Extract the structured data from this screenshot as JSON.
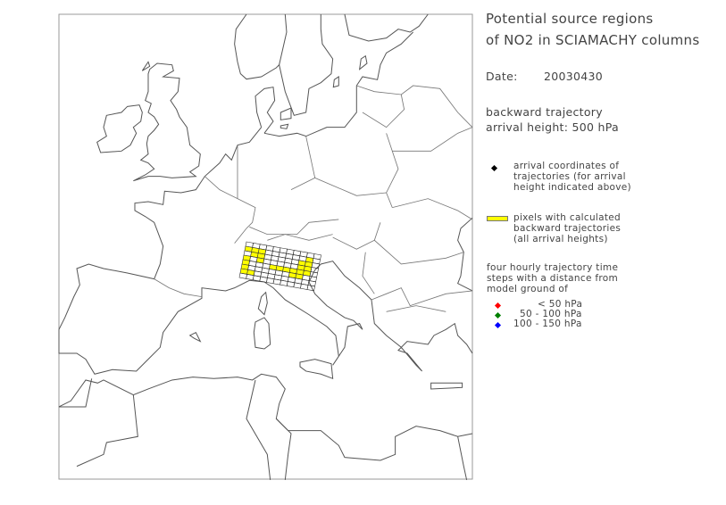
{
  "title": [
    "Potential source regions",
    "of NO2 in SCIAMACHY columns"
  ],
  "date": {
    "label": "Date:",
    "value": "20030430"
  },
  "trajectory": {
    "line1": "backward trajectory",
    "line2": "arrival height: 500 hPa"
  },
  "legend": {
    "arrival": {
      "icon": "diamond-black",
      "color": "#000000",
      "lines": [
        "arrival coordinates of",
        "trajectories (for arrival",
        "height indicated above)"
      ]
    },
    "pixels": {
      "color": "#ffff00",
      "lines": [
        "pixels with calculated",
        "backward trajectories",
        "(all arrival heights)"
      ]
    },
    "steps_header": [
      "four hourly trajectory time",
      "steps with a distance from",
      "model ground of"
    ],
    "steps": [
      {
        "label": "<  50 hPa",
        "color": "#ff0000"
      },
      {
        "label": "50 - 100 hPa",
        "color": "#008000"
      },
      {
        "label": "100 - 150 hPa",
        "color": "#0000ff"
      }
    ]
  },
  "map": {
    "region": "Europe",
    "pixel_grid": {
      "rows": 8,
      "cols": 11,
      "highlighted": [
        [
          1,
          0
        ],
        [
          1,
          1
        ],
        [
          1,
          2
        ],
        [
          1,
          9
        ],
        [
          2,
          1
        ],
        [
          2,
          2
        ],
        [
          2,
          8
        ],
        [
          2,
          9
        ],
        [
          3,
          0
        ],
        [
          3,
          2
        ],
        [
          3,
          8
        ],
        [
          3,
          9
        ],
        [
          4,
          0
        ],
        [
          4,
          4
        ],
        [
          4,
          5
        ],
        [
          4,
          6
        ],
        [
          4,
          7
        ],
        [
          4,
          8
        ],
        [
          4,
          9
        ],
        [
          5,
          0
        ],
        [
          5,
          7
        ],
        [
          5,
          8
        ],
        [
          6,
          0
        ],
        [
          6,
          1
        ]
      ]
    }
  }
}
